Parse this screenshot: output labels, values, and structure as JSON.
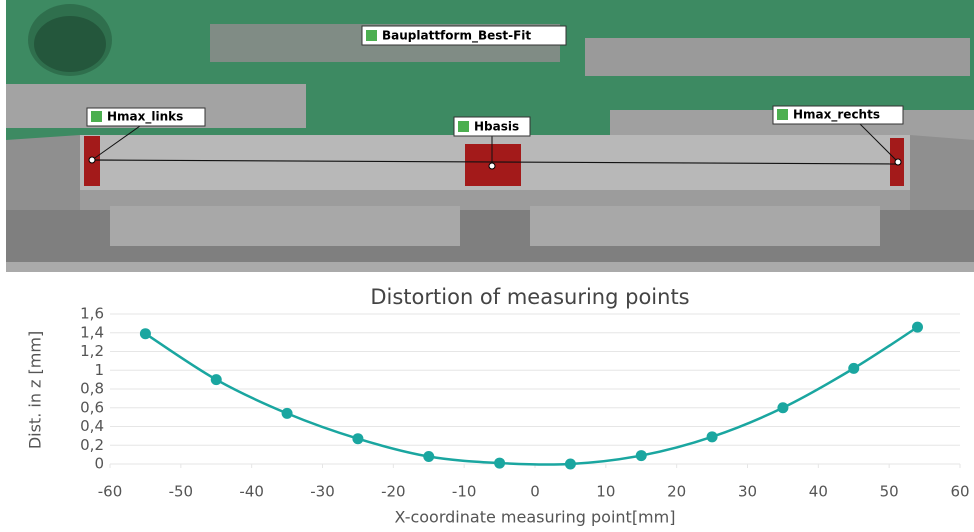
{
  "scan_labels": [
    "Bauplattform_Best-Fit",
    "Hmax_links",
    "Hbasis",
    "Hmax_rechts"
  ],
  "chart_data": {
    "type": "line",
    "title": "Distortion of measuring points",
    "x_label": "X-coordinate measuring point[mm]",
    "y_label": "Dist. in z [mm]",
    "x": [
      -55,
      -45,
      -35,
      -25,
      -15,
      -5,
      5,
      15,
      25,
      35,
      45,
      54
    ],
    "series": [
      {
        "color": "#1aa6a0",
        "values": [
          1.39,
          0.9,
          0.54,
          0.27,
          0.08,
          0.01,
          0.0,
          0.09,
          0.29,
          0.6,
          1.02,
          1.46
        ]
      }
    ],
    "xlim": [
      -60,
      60
    ],
    "xticks": [
      -60,
      -50,
      -40,
      -30,
      -20,
      -10,
      0,
      10,
      20,
      30,
      40,
      50,
      60
    ],
    "ylim": [
      0,
      1.6
    ],
    "yticks": [
      0,
      {
        "value": 0.2,
        "label": "0,2"
      },
      {
        "value": 0.4,
        "label": "0,4"
      },
      {
        "value": 0.6,
        "label": "0,6"
      },
      {
        "value": 0.8,
        "label": "0,8"
      },
      1,
      {
        "value": 1.2,
        "label": "1,2"
      },
      {
        "value": 1.4,
        "label": "1,4"
      },
      {
        "value": 1.6,
        "label": "1,6"
      }
    ]
  }
}
